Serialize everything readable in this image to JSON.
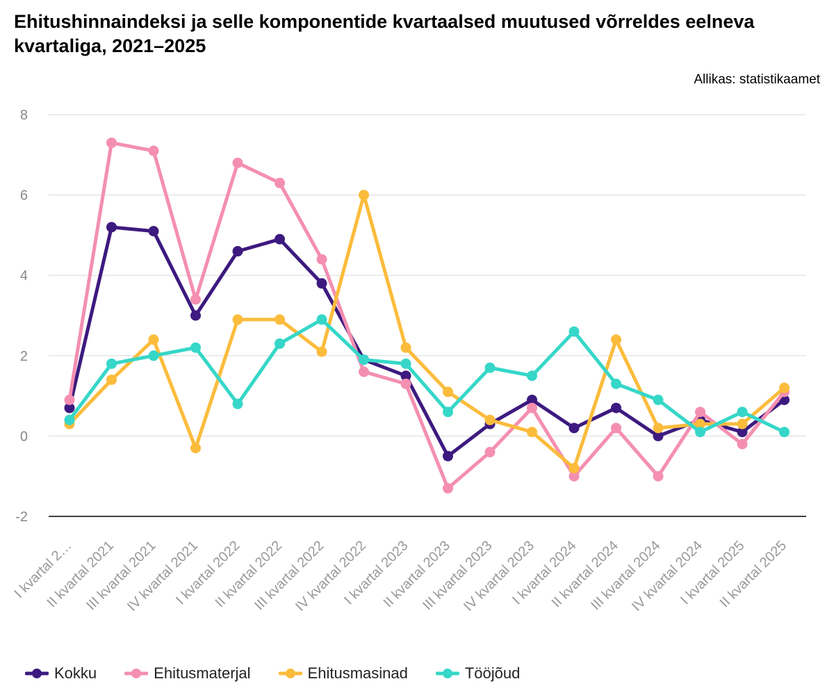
{
  "chart_data": {
    "type": "line",
    "title": "Ehitushinnaindeksi ja selle komponentide kvartaalsed muutused võrreldes eelneva kvartaliga, 2021–2025",
    "source": "Allikas: statistikaamet",
    "categories": [
      "I kvartal 2…",
      "II kvartal 2021",
      "III kvartal 2021",
      "IV kvartal 2021",
      "I kvartal 2022",
      "II kvartal 2022",
      "III kvartal 2022",
      "IV kvartal 2022",
      "I kvartal 2023",
      "II kvartal 2023",
      "III kvartal 2023",
      "IV kvartal 2023",
      "I kvartal 2024",
      "II kvartal 2024",
      "III kvartal 2024",
      "IV kvartal 2024",
      "I kvartal 2025",
      "II kvartal 2025"
    ],
    "ylim": [
      -2,
      8
    ],
    "yticks": [
      "8",
      "6",
      "4",
      "2",
      "0",
      "-2"
    ],
    "ytick_values": [
      8,
      6,
      4,
      2,
      0,
      -2
    ],
    "grid": true,
    "legend_position": "bottom-left",
    "series": [
      {
        "name": "Kokku",
        "color": "#3d1a7f",
        "values": [
          0.7,
          5.2,
          5.1,
          3.0,
          4.6,
          4.9,
          3.8,
          1.9,
          1.5,
          -0.5,
          0.3,
          0.9,
          0.2,
          0.7,
          0.0,
          0.4,
          0.1,
          0.9
        ]
      },
      {
        "name": "Ehitusmaterjal",
        "color": "#f48fb1",
        "values": [
          0.9,
          7.3,
          7.1,
          3.4,
          6.8,
          6.3,
          4.4,
          1.6,
          1.3,
          -1.3,
          -0.4,
          0.7,
          -1.0,
          0.2,
          -1.0,
          0.6,
          -0.2,
          1.1
        ]
      },
      {
        "name": "Ehitusmasinad",
        "color": "#fbbc3c",
        "values": [
          0.3,
          1.4,
          2.4,
          -0.3,
          2.9,
          2.9,
          2.1,
          6.0,
          2.2,
          1.1,
          0.4,
          0.1,
          -0.8,
          2.4,
          0.2,
          0.3,
          0.3,
          1.2
        ]
      },
      {
        "name": "Tööjõud",
        "color": "#36d7c8",
        "values": [
          0.4,
          1.8,
          2.0,
          2.2,
          0.8,
          2.3,
          2.9,
          1.9,
          1.8,
          0.6,
          1.7,
          1.5,
          2.6,
          1.3,
          0.9,
          0.1,
          0.6,
          0.1
        ]
      }
    ]
  }
}
